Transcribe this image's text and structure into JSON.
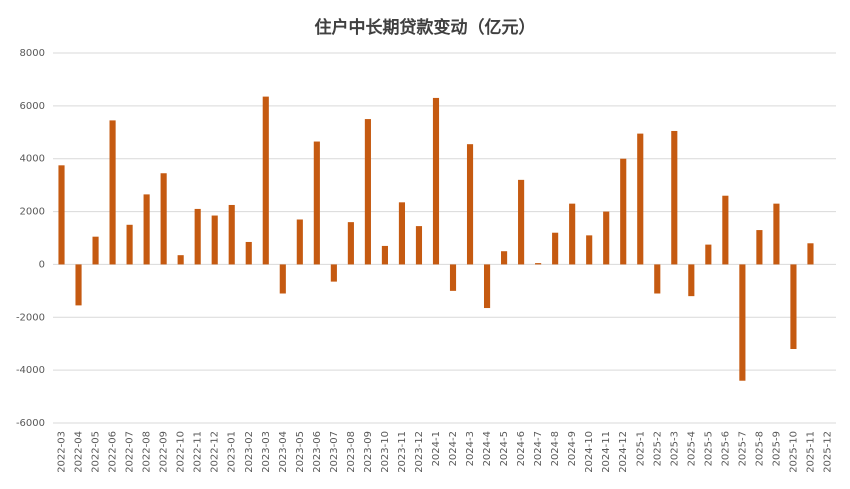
{
  "chart_data": {
    "type": "bar",
    "title": "住户中长期贷款变动（亿元）",
    "categories": [
      "2022-03",
      "2022-04",
      "2022-05",
      "2022-06",
      "2022-07",
      "2022-08",
      "2022-09",
      "2022-10",
      "2022-11",
      "2022-12",
      "2023-01",
      "2023-02",
      "2023-03",
      "2023-04",
      "2023-05",
      "2023-06",
      "2023-07",
      "2023-08",
      "2023-09",
      "2023-10",
      "2023-11",
      "2023-12",
      "2024-1",
      "2024-2",
      "2024-3",
      "2024-4",
      "2024-5",
      "2024-6",
      "2024-7",
      "2024-8",
      "2024-9",
      "2024-10",
      "2024-11",
      "2024-12",
      "2025-1",
      "2025-2",
      "2025-3",
      "2025-4",
      "2025-5",
      "2025-6",
      "2025-7",
      "2025-8",
      "2025-9",
      "2025-10",
      "2025-11",
      "2025-12"
    ],
    "values": [
      3750,
      -1550,
      1050,
      5450,
      1500,
      2650,
      3450,
      350,
      2100,
      1850,
      2250,
      850,
      6350,
      -1100,
      1700,
      4650,
      -650,
      1600,
      5500,
      700,
      2350,
      1450,
      6300,
      -1000,
      4550,
      -1650,
      500,
      3200,
      50,
      1200,
      2300,
      1100,
      2000,
      4000,
      4950,
      -1100,
      5050,
      -1200,
      750,
      2600,
      -4400,
      1300,
      2300,
      -3200,
      800,
      null
    ],
    "color": "#c55a11",
    "ylim": [
      -6000,
      8000
    ],
    "yticks": [
      -6000,
      -4000,
      -2000,
      0,
      2000,
      4000,
      6000,
      8000
    ],
    "grid": true
  }
}
